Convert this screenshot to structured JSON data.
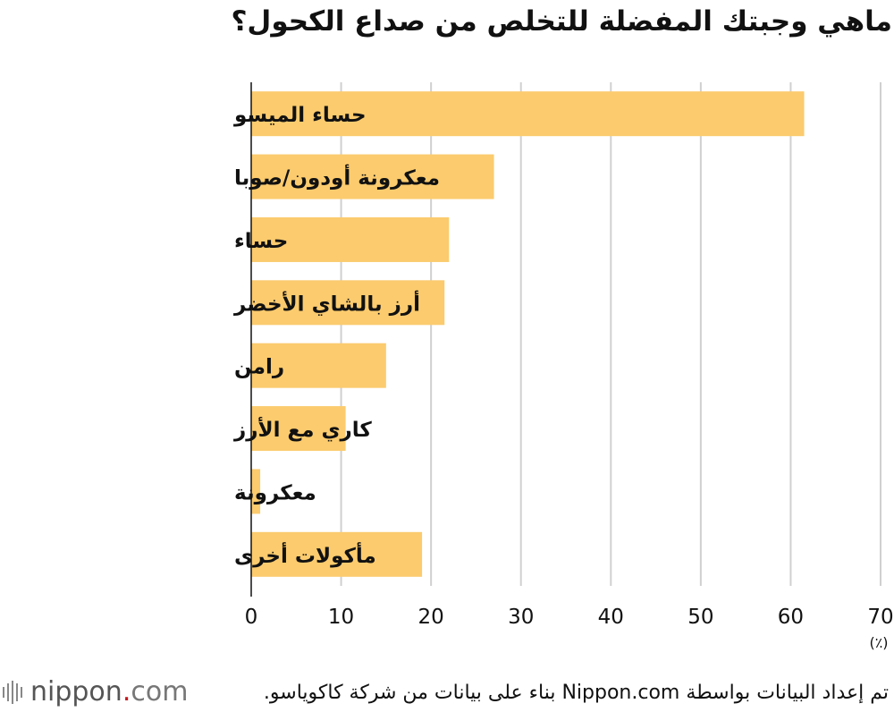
{
  "title": "ماهي وجبتك المفضلة للتخلص من صداع الكحول؟",
  "source": "تم إعداد البيانات بواسطة Nippon.com بناء على بيانات من شركة كاكوياسو.",
  "logo": {
    "name": "nippon",
    "dot": ".",
    "suffix": "com"
  },
  "colors": {
    "bar": "#FBCB6E",
    "grid": "#D0D0D0",
    "axis": "#111111",
    "logo_dot": "#C4161C"
  },
  "chart_data": {
    "type": "bar",
    "orientation": "horizontal",
    "categories": [
      "حساء الميسو",
      "معكرونة أودون/صوبا",
      "حساء",
      "أرز بالشاي الأخضر",
      "رامن",
      "كاري مع الأرز",
      "معكرونة",
      "مأكولات أخرى"
    ],
    "values": [
      61.5,
      27,
      22,
      21.5,
      15,
      10.5,
      1,
      19
    ],
    "xlim": [
      0,
      70
    ],
    "xticks": [
      0,
      10,
      20,
      30,
      40,
      50,
      60,
      70
    ],
    "unit": "(٪)",
    "grid": true
  }
}
